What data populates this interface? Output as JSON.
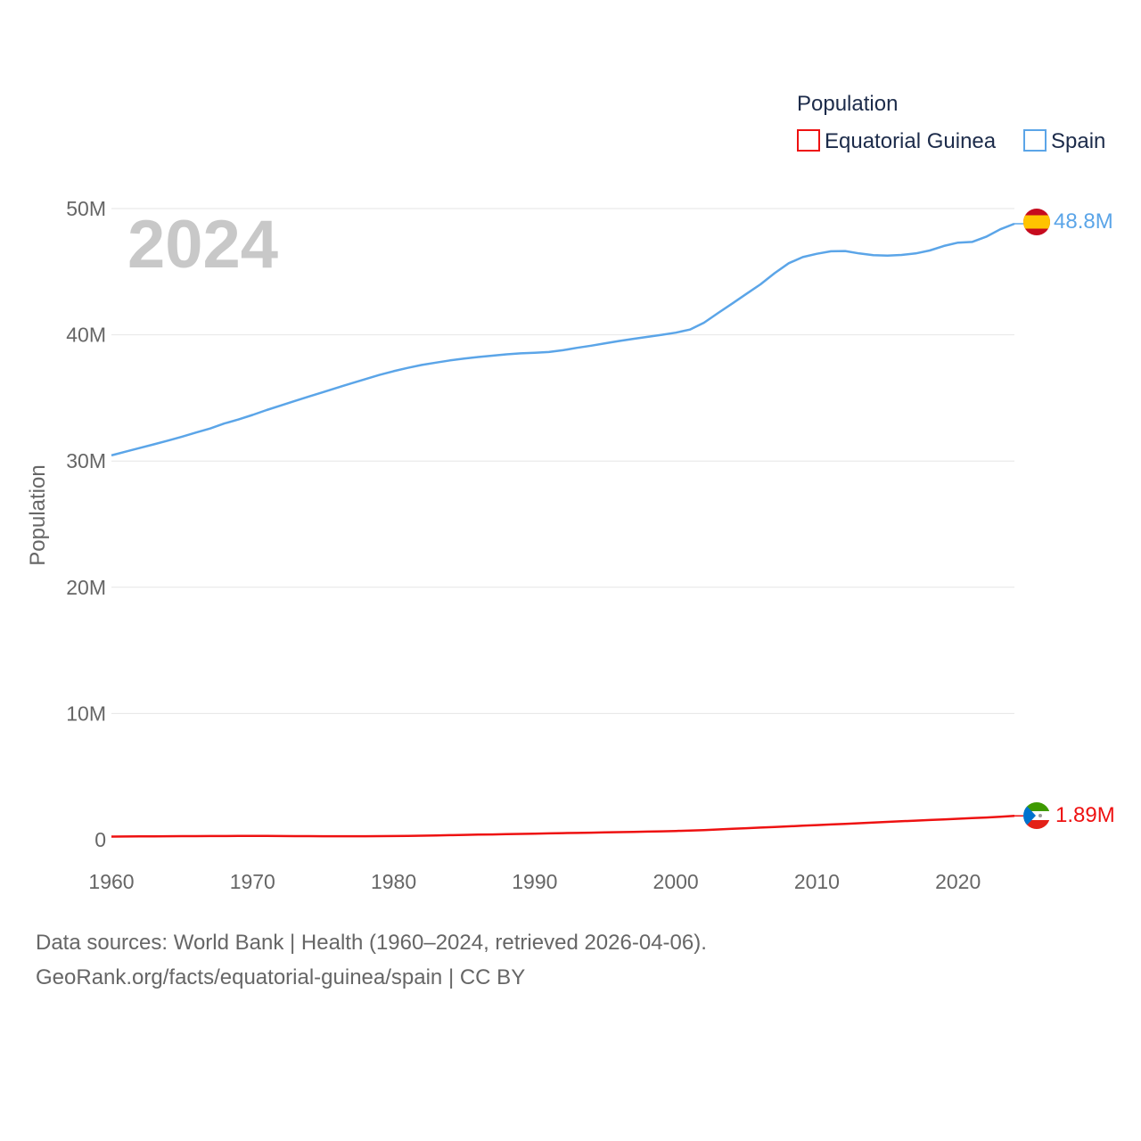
{
  "chart_data": {
    "type": "line",
    "legend_title": "Population",
    "ylabel": "Population",
    "year_label": "2024",
    "x": [
      1960,
      1961,
      1962,
      1963,
      1964,
      1965,
      1966,
      1967,
      1968,
      1969,
      1970,
      1971,
      1972,
      1973,
      1974,
      1975,
      1976,
      1977,
      1978,
      1979,
      1980,
      1981,
      1982,
      1983,
      1984,
      1985,
      1986,
      1987,
      1988,
      1989,
      1990,
      1991,
      1992,
      1993,
      1994,
      1995,
      1996,
      1997,
      1998,
      1999,
      2000,
      2001,
      2002,
      2003,
      2004,
      2005,
      2006,
      2007,
      2008,
      2009,
      2010,
      2011,
      2012,
      2013,
      2014,
      2015,
      2016,
      2017,
      2018,
      2019,
      2020,
      2021,
      2022,
      2023,
      2024
    ],
    "xlim": [
      1960,
      2024
    ],
    "ylim": [
      0,
      50000000
    ],
    "x_ticks": [
      1960,
      1970,
      1980,
      1990,
      2000,
      2010,
      2020
    ],
    "x_tick_labels": [
      "1960",
      "1970",
      "1980",
      "1990",
      "2000",
      "2010",
      "2020"
    ],
    "y_ticks": [
      0,
      10000000,
      20000000,
      30000000,
      40000000,
      50000000
    ],
    "y_tick_labels": [
      "0",
      "10M",
      "20M",
      "30M",
      "40M",
      "50M"
    ],
    "series": [
      {
        "name": "Equatorial Guinea",
        "color": "#ee1111",
        "end_label": "1.89M",
        "flag": "equatorial-guinea-flag-icon",
        "values": [
          250000,
          256000,
          262000,
          268000,
          274000,
          280000,
          285000,
          290000,
          293000,
          296000,
          297000,
          295000,
          290000,
          285000,
          280000,
          276000,
          273000,
          272000,
          274000,
          280000,
          290000,
          305000,
          320000,
          340000,
          360000,
          380000,
          400000,
          420000,
          440000,
          460000,
          480000,
          500000,
          520000,
          540000,
          560000,
          580000,
          600000,
          620000,
          640000,
          665000,
          690000,
          725000,
          765000,
          810000,
          860000,
          910000,
          960000,
          1010000,
          1060000,
          1110000,
          1160000,
          1210000,
          1260000,
          1310000,
          1360000,
          1410000,
          1460000,
          1510000,
          1560000,
          1610000,
          1660000,
          1710000,
          1760000,
          1820000,
          1890000
        ]
      },
      {
        "name": "Spain",
        "color": "#5ba5e8",
        "end_label": "48.8M",
        "flag": "spain-flag-icon",
        "values": [
          30450000,
          30740000,
          31030000,
          31320000,
          31620000,
          31930000,
          32260000,
          32580000,
          32970000,
          33290000,
          33650000,
          34040000,
          34400000,
          34760000,
          35110000,
          35460000,
          35810000,
          36150000,
          36490000,
          36820000,
          37120000,
          37380000,
          37610000,
          37800000,
          37970000,
          38120000,
          38240000,
          38350000,
          38450000,
          38530000,
          38580000,
          38640000,
          38780000,
          38970000,
          39140000,
          39330000,
          39510000,
          39680000,
          39840000,
          40000000,
          40170000,
          40420000,
          40960000,
          41730000,
          42470000,
          43240000,
          44000000,
          44880000,
          45670000,
          46160000,
          46420000,
          46620000,
          46640000,
          46450000,
          46310000,
          46280000,
          46330000,
          46450000,
          46680000,
          47040000,
          47300000,
          47360000,
          47770000,
          48360000,
          48800000
        ]
      }
    ]
  },
  "footer": {
    "line1": "Data sources: World Bank | Health (1960–2024, retrieved 2026-04-06).",
    "line2": "GeoRank.org/facts/equatorial-guinea/spain | CC BY"
  }
}
